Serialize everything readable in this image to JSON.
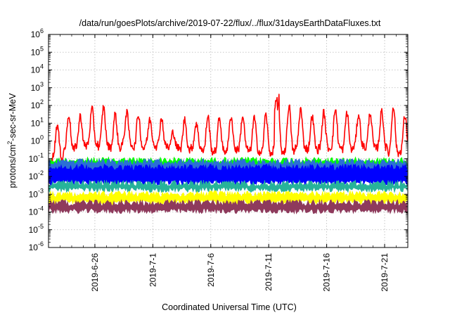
{
  "chart_data": {
    "type": "line",
    "title": "/data/run/goesPlots/archive/2019-07-22/flux/../flux/31daysEarthDataFluxes.txt",
    "xlabel": "Coordinated Universal Time (UTC)",
    "ylabel_base": "protons/cm",
    "ylabel_sup": "2",
    "ylabel_rest": "-sec-sr-MeV",
    "y_scale": "log",
    "ylim": [
      1e-06,
      1000000.0
    ],
    "y_ticks": [
      {
        "base": "10",
        "exp": "6"
      },
      {
        "base": "10",
        "exp": "5"
      },
      {
        "base": "10",
        "exp": "4"
      },
      {
        "base": "10",
        "exp": "3"
      },
      {
        "base": "10",
        "exp": "2"
      },
      {
        "base": "10",
        "exp": "1"
      },
      {
        "base": "10",
        "exp": "0"
      },
      {
        "base": "10",
        "exp": "-1"
      },
      {
        "base": "10",
        "exp": "-2"
      },
      {
        "base": "10",
        "exp": "-3"
      },
      {
        "base": "10",
        "exp": "-4"
      },
      {
        "base": "10",
        "exp": "-5"
      },
      {
        "base": "10",
        "exp": "-6"
      }
    ],
    "xlim": [
      "2019-06-22",
      "2019-07-23"
    ],
    "x_ticks": [
      "2019-6-26",
      "2019-7-1",
      "2019-7-6",
      "2019-7-11",
      "2019-7-16",
      "2019-7-21"
    ],
    "grid": true,
    "series": [
      {
        "color": "#ff0000",
        "pattern": "daily oscillation, log10 flux",
        "x": [
          "2019-06-22",
          "2019-06-23",
          "2019-06-24",
          "2019-06-25",
          "2019-06-26",
          "2019-06-27",
          "2019-06-28",
          "2019-06-29",
          "2019-06-30",
          "2019-07-01",
          "2019-07-02",
          "2019-07-03",
          "2019-07-04",
          "2019-07-05",
          "2019-07-06",
          "2019-07-07",
          "2019-07-08",
          "2019-07-09",
          "2019-07-10",
          "2019-07-11",
          "2019-07-12",
          "2019-07-13",
          "2019-07-14",
          "2019-07-15",
          "2019-07-16",
          "2019-07-17",
          "2019-07-18",
          "2019-07-19",
          "2019-07-20",
          "2019-07-21",
          "2019-07-22"
        ],
        "daily_max_log10": [
          0.9,
          1.5,
          1.4,
          1.8,
          1.9,
          1.5,
          1.6,
          1.5,
          1.2,
          1.3,
          0.5,
          1.2,
          1.0,
          1.4,
          1.3,
          1.4,
          1.4,
          1.3,
          1.5,
          2.9,
          2.0,
          1.8,
          1.4,
          1.6,
          1.8,
          1.6,
          1.5,
          1.6,
          1.7,
          2.0,
          1.4
        ],
        "daily_min_log10": [
          -0.9,
          -0.5,
          -0.3,
          -0.2,
          -0.3,
          -0.4,
          -0.2,
          -0.4,
          -0.2,
          -0.3,
          -0.4,
          -0.5,
          -0.4,
          -0.6,
          -0.6,
          -0.5,
          -0.5,
          -0.6,
          -0.7,
          -0.6,
          -0.6,
          -0.4,
          -0.5,
          -0.4,
          -0.4,
          -0.5,
          -0.3,
          -0.4,
          -0.4,
          -0.7,
          -0.6
        ]
      },
      {
        "color": "#00ff00",
        "band_log10": [
          -1.8,
          -0.9
        ]
      },
      {
        "color": "#0000ff",
        "band_log10": [
          -2.5,
          -1.3
        ]
      },
      {
        "color": "#2b6fd6",
        "band_log10": [
          -2.2,
          -1.0
        ]
      },
      {
        "color": "#27b39a",
        "band_log10": [
          -2.9,
          -2.2
        ]
      },
      {
        "color": "#ffff00",
        "band_log10": [
          -3.6,
          -2.8
        ]
      },
      {
        "color": "#8e3a5c",
        "band_log10": [
          -4.1,
          -3.3
        ]
      }
    ]
  }
}
